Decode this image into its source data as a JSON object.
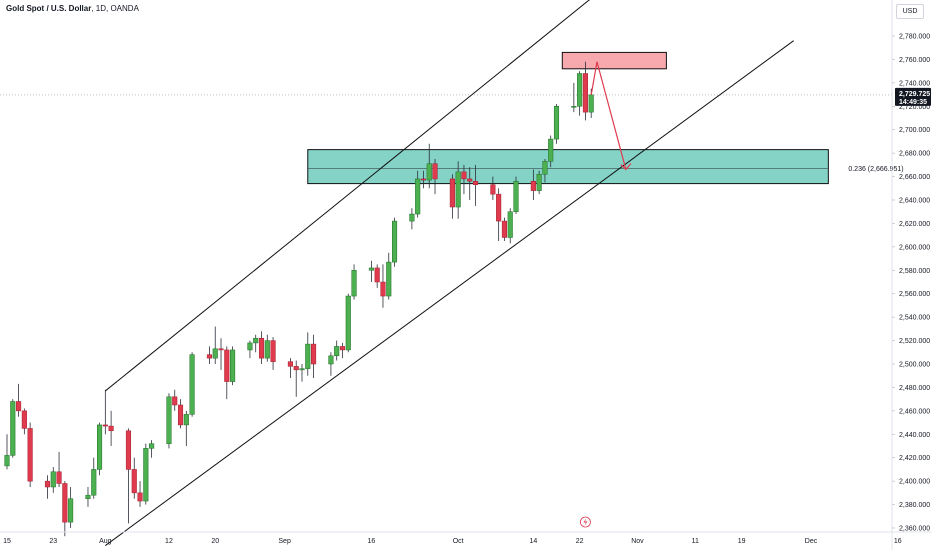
{
  "header": {
    "symbol": "Gold Spot / U.S. Dollar",
    "meta": ", 1D, OANDA"
  },
  "currency_button": "USD",
  "price_axis": {
    "labels": [
      "2,780.000",
      "2,760.000",
      "2,740.000",
      "2,720.000",
      "2,700.000",
      "2,680.000",
      "2,660.000",
      "2,640.000",
      "2,620.000",
      "2,600.000",
      "2,580.000",
      "2,560.000",
      "2,540.000",
      "2,520.000",
      "2,500.000",
      "2,480.000",
      "2,460.000",
      "2,440.000",
      "2,420.000",
      "2,400.000",
      "2,380.000",
      "2,360.000"
    ],
    "values": [
      2780,
      2760,
      2740,
      2720,
      2700,
      2680,
      2660,
      2640,
      2620,
      2600,
      2580,
      2560,
      2540,
      2520,
      2500,
      2480,
      2460,
      2440,
      2420,
      2400,
      2380,
      2360
    ]
  },
  "last_price": {
    "value": 2729.725,
    "label": "2,729.725",
    "countdown": "14:49:35"
  },
  "time_axis": {
    "labels": [
      "15",
      "23",
      "Aug",
      "12",
      "20",
      "Sep",
      "16",
      "Oct",
      "14",
      "22",
      "Nov",
      "11",
      "19",
      "Dec",
      "16"
    ],
    "dates": [
      "2024-07-15",
      "2024-07-23",
      "2024-08-01",
      "2024-08-12",
      "2024-08-20",
      "2024-09-01",
      "2024-09-16",
      "2024-10-01",
      "2024-10-14",
      "2024-10-22",
      "2024-11-01",
      "2024-11-11",
      "2024-11-19",
      "2024-12-01",
      "2024-12-16"
    ]
  },
  "fib_label": "0.236 (2,666.951)",
  "colors": {
    "up": "#4caf50",
    "down": "#e03a4e",
    "up_border": "#1f6e24",
    "down_border": "#a01f2e",
    "resistance_fill": "#f7a9ad",
    "support_fill": "#84d3c6",
    "arrow": "#e03a4e",
    "last_price_bg": "#131722"
  },
  "chart_data": {
    "type": "candlestick",
    "title": "Gold Spot / U.S. Dollar, 1D, OANDA",
    "ylim": [
      2355,
      2790
    ],
    "xlim": [
      "2024-07-12",
      "2024-12-18"
    ],
    "grid": false,
    "candles": [
      {
        "date": "2024-07-12",
        "open": 2415,
        "high": 2425,
        "low": 2405,
        "close": 2413
      },
      {
        "date": "2024-07-15",
        "open": 2413,
        "high": 2440,
        "low": 2410,
        "close": 2422
      },
      {
        "date": "2024-07-16",
        "open": 2422,
        "high": 2470,
        "low": 2420,
        "close": 2468
      },
      {
        "date": "2024-07-17",
        "open": 2468,
        "high": 2483,
        "low": 2455,
        "close": 2460
      },
      {
        "date": "2024-07-18",
        "open": 2460,
        "high": 2462,
        "low": 2440,
        "close": 2445
      },
      {
        "date": "2024-07-19",
        "open": 2445,
        "high": 2450,
        "low": 2395,
        "close": 2400
      },
      {
        "date": "2024-07-22",
        "open": 2400,
        "high": 2405,
        "low": 2385,
        "close": 2395
      },
      {
        "date": "2024-07-23",
        "open": 2395,
        "high": 2412,
        "low": 2390,
        "close": 2408
      },
      {
        "date": "2024-07-24",
        "open": 2408,
        "high": 2425,
        "low": 2395,
        "close": 2398
      },
      {
        "date": "2024-07-25",
        "open": 2398,
        "high": 2400,
        "low": 2353,
        "close": 2365
      },
      {
        "date": "2024-07-26",
        "open": 2365,
        "high": 2395,
        "low": 2360,
        "close": 2385
      },
      {
        "date": "2024-07-29",
        "open": 2385,
        "high": 2395,
        "low": 2378,
        "close": 2388
      },
      {
        "date": "2024-07-30",
        "open": 2388,
        "high": 2420,
        "low": 2385,
        "close": 2410
      },
      {
        "date": "2024-07-31",
        "open": 2410,
        "high": 2450,
        "low": 2405,
        "close": 2448
      },
      {
        "date": "2024-08-01",
        "open": 2448,
        "high": 2478,
        "low": 2440,
        "close": 2447
      },
      {
        "date": "2024-08-02",
        "open": 2447,
        "high": 2460,
        "low": 2430,
        "close": 2443
      },
      {
        "date": "2024-08-05",
        "open": 2443,
        "high": 2445,
        "low": 2364,
        "close": 2410
      },
      {
        "date": "2024-08-06",
        "open": 2410,
        "high": 2420,
        "low": 2385,
        "close": 2390
      },
      {
        "date": "2024-08-07",
        "open": 2390,
        "high": 2400,
        "low": 2378,
        "close": 2383
      },
      {
        "date": "2024-08-08",
        "open": 2383,
        "high": 2432,
        "low": 2380,
        "close": 2428
      },
      {
        "date": "2024-08-09",
        "open": 2428,
        "high": 2435,
        "low": 2420,
        "close": 2432
      },
      {
        "date": "2024-08-12",
        "open": 2432,
        "high": 2475,
        "low": 2428,
        "close": 2472
      },
      {
        "date": "2024-08-13",
        "open": 2472,
        "high": 2478,
        "low": 2460,
        "close": 2465
      },
      {
        "date": "2024-08-14",
        "open": 2465,
        "high": 2470,
        "low": 2445,
        "close": 2448
      },
      {
        "date": "2024-08-15",
        "open": 2448,
        "high": 2460,
        "low": 2430,
        "close": 2457
      },
      {
        "date": "2024-08-16",
        "open": 2457,
        "high": 2510,
        "low": 2455,
        "close": 2508
      },
      {
        "date": "2024-08-19",
        "open": 2508,
        "high": 2515,
        "low": 2500,
        "close": 2505
      },
      {
        "date": "2024-08-20",
        "open": 2505,
        "high": 2532,
        "low": 2500,
        "close": 2513
      },
      {
        "date": "2024-08-21",
        "open": 2513,
        "high": 2522,
        "low": 2495,
        "close": 2512
      },
      {
        "date": "2024-08-22",
        "open": 2512,
        "high": 2515,
        "low": 2470,
        "close": 2485
      },
      {
        "date": "2024-08-23",
        "open": 2485,
        "high": 2515,
        "low": 2482,
        "close": 2512
      },
      {
        "date": "2024-08-26",
        "open": 2512,
        "high": 2520,
        "low": 2505,
        "close": 2518
      },
      {
        "date": "2024-08-27",
        "open": 2518,
        "high": 2525,
        "low": 2510,
        "close": 2522
      },
      {
        "date": "2024-08-28",
        "open": 2522,
        "high": 2528,
        "low": 2500,
        "close": 2505
      },
      {
        "date": "2024-08-29",
        "open": 2505,
        "high": 2525,
        "low": 2502,
        "close": 2520
      },
      {
        "date": "2024-08-30",
        "open": 2520,
        "high": 2523,
        "low": 2495,
        "close": 2502
      },
      {
        "date": "2024-09-02",
        "open": 2502,
        "high": 2505,
        "low": 2488,
        "close": 2498
      },
      {
        "date": "2024-09-03",
        "open": 2498,
        "high": 2503,
        "low": 2472,
        "close": 2495
      },
      {
        "date": "2024-09-04",
        "open": 2495,
        "high": 2500,
        "low": 2485,
        "close": 2496
      },
      {
        "date": "2024-09-05",
        "open": 2496,
        "high": 2527,
        "low": 2490,
        "close": 2517
      },
      {
        "date": "2024-09-06",
        "open": 2517,
        "high": 2525,
        "low": 2488,
        "close": 2500
      },
      {
        "date": "2024-09-09",
        "open": 2500,
        "high": 2510,
        "low": 2490,
        "close": 2507
      },
      {
        "date": "2024-09-10",
        "open": 2507,
        "high": 2520,
        "low": 2503,
        "close": 2515
      },
      {
        "date": "2024-09-11",
        "open": 2515,
        "high": 2518,
        "low": 2505,
        "close": 2512
      },
      {
        "date": "2024-09-12",
        "open": 2512,
        "high": 2560,
        "low": 2510,
        "close": 2558
      },
      {
        "date": "2024-09-13",
        "open": 2558,
        "high": 2585,
        "low": 2555,
        "close": 2580
      },
      {
        "date": "2024-09-16",
        "open": 2580,
        "high": 2588,
        "low": 2570,
        "close": 2582
      },
      {
        "date": "2024-09-17",
        "open": 2582,
        "high": 2585,
        "low": 2565,
        "close": 2570
      },
      {
        "date": "2024-09-18",
        "open": 2570,
        "high": 2585,
        "low": 2548,
        "close": 2558
      },
      {
        "date": "2024-09-19",
        "open": 2558,
        "high": 2595,
        "low": 2555,
        "close": 2587
      },
      {
        "date": "2024-09-20",
        "open": 2587,
        "high": 2625,
        "low": 2583,
        "close": 2622
      },
      {
        "date": "2024-09-23",
        "open": 2622,
        "high": 2633,
        "low": 2615,
        "close": 2628
      },
      {
        "date": "2024-09-24",
        "open": 2628,
        "high": 2665,
        "low": 2625,
        "close": 2658
      },
      {
        "date": "2024-09-25",
        "open": 2658,
        "high": 2665,
        "low": 2650,
        "close": 2657
      },
      {
        "date": "2024-09-26",
        "open": 2657,
        "high": 2688,
        "low": 2650,
        "close": 2671
      },
      {
        "date": "2024-09-27",
        "open": 2671,
        "high": 2675,
        "low": 2645,
        "close": 2658
      },
      {
        "date": "2024-09-30",
        "open": 2658,
        "high": 2662,
        "low": 2624,
        "close": 2634
      },
      {
        "date": "2024-10-01",
        "open": 2634,
        "high": 2673,
        "low": 2624,
        "close": 2664
      },
      {
        "date": "2024-10-02",
        "open": 2664,
        "high": 2670,
        "low": 2645,
        "close": 2658
      },
      {
        "date": "2024-10-03",
        "open": 2658,
        "high": 2668,
        "low": 2640,
        "close": 2656
      },
      {
        "date": "2024-10-04",
        "open": 2656,
        "high": 2670,
        "low": 2635,
        "close": 2653
      },
      {
        "date": "2024-10-07",
        "open": 2653,
        "high": 2660,
        "low": 2640,
        "close": 2645
      },
      {
        "date": "2024-10-08",
        "open": 2645,
        "high": 2650,
        "low": 2605,
        "close": 2622
      },
      {
        "date": "2024-10-09",
        "open": 2622,
        "high": 2625,
        "low": 2605,
        "close": 2608
      },
      {
        "date": "2024-10-10",
        "open": 2608,
        "high": 2633,
        "low": 2603,
        "close": 2630
      },
      {
        "date": "2024-10-11",
        "open": 2630,
        "high": 2660,
        "low": 2628,
        "close": 2656
      },
      {
        "date": "2024-10-14",
        "open": 2656,
        "high": 2666,
        "low": 2640,
        "close": 2648
      },
      {
        "date": "2024-10-15",
        "open": 2648,
        "high": 2665,
        "low": 2645,
        "close": 2662
      },
      {
        "date": "2024-10-16",
        "open": 2662,
        "high": 2675,
        "low": 2655,
        "close": 2673
      },
      {
        "date": "2024-10-17",
        "open": 2673,
        "high": 2695,
        "low": 2668,
        "close": 2692
      },
      {
        "date": "2024-10-18",
        "open": 2692,
        "high": 2722,
        "low": 2688,
        "close": 2720
      },
      {
        "date": "2024-10-21",
        "open": 2720,
        "high": 2740,
        "low": 2715,
        "close": 2720
      },
      {
        "date": "2024-10-22",
        "open": 2720,
        "high": 2750,
        "low": 2712,
        "close": 2748
      },
      {
        "date": "2024-10-23",
        "open": 2748,
        "high": 2758,
        "low": 2708,
        "close": 2715
      },
      {
        "date": "2024-10-24",
        "open": 2715,
        "high": 2735,
        "low": 2710,
        "close": 2729.725
      }
    ],
    "annotations": {
      "channel_upper": {
        "from": {
          "date": "2024-08-01",
          "price": 2477
        },
        "to": {
          "date": "2024-11-10",
          "price": 2880
        }
      },
      "channel_lower": {
        "from": {
          "date": "2024-08-01",
          "price": 2345
        },
        "to": {
          "date": "2024-11-28",
          "price": 2776
        }
      },
      "resistance_zone": {
        "from_date": "2024-10-19",
        "to_date": "2024-11-06",
        "top": 2766,
        "bottom": 2752
      },
      "support_zone": {
        "from_date": "2024-09-05",
        "to_date": "2024-12-04",
        "top": 2683,
        "bottom": 2654
      },
      "fib_level": {
        "ratio": 0.236,
        "price": 2666.951
      },
      "projection_arrow": [
        {
          "date": "2024-10-24",
          "price": 2729.725
        },
        {
          "date": "2024-10-25",
          "price": 2758
        },
        {
          "date": "2024-10-30",
          "price": 2666
        }
      ],
      "event_marker_date": "2024-10-23"
    }
  }
}
